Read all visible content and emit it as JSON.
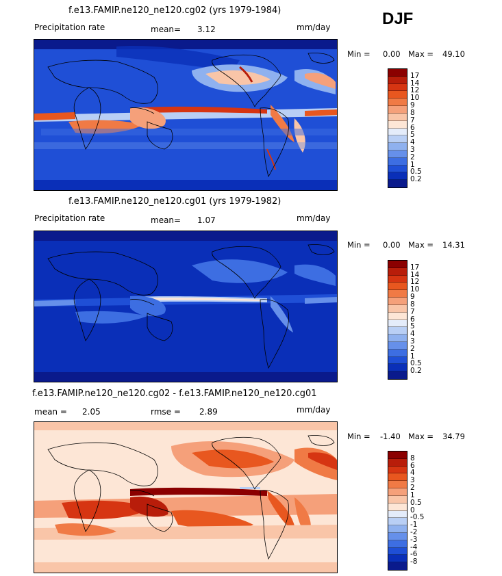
{
  "season": "DJF",
  "panels": [
    {
      "title": "f.e13.FAMIP.ne120_ne120.cg02 (yrs 1979-1984)",
      "left_label": "Precipitation rate",
      "stat1_label": "mean=",
      "stat1_value": "3.12",
      "stat2_label": "",
      "stat2_value": "",
      "units": "mm/day",
      "min_label": "Min =",
      "min_value": "0.00",
      "max_label": "Max =",
      "max_value": "49.10",
      "colorbar": {
        "levels": [
          "17",
          "14",
          "12",
          "10",
          "9",
          "8",
          "7",
          "6",
          "5",
          "4",
          "3",
          "2",
          "1",
          "0.5",
          "0.2"
        ],
        "colors": [
          "#8b0000",
          "#b81d0a",
          "#d63512",
          "#e8571f",
          "#f07a45",
          "#f5a07a",
          "#f9c5a8",
          "#fde6d6",
          "#e4ecfa",
          "#b9cff5",
          "#8fb1ef",
          "#6690ea",
          "#3d6ee2",
          "#1f4fd6",
          "#0a2fb8",
          "#0a1a8c"
        ]
      }
    },
    {
      "title": "f.e13.FAMIP.ne120_ne120.cg01 (yrs 1979-1982)",
      "left_label": "Precipitation rate",
      "stat1_label": "mean=",
      "stat1_value": "1.07",
      "stat2_label": "",
      "stat2_value": "",
      "units": "mm/day",
      "min_label": "Min =",
      "min_value": "0.00",
      "max_label": "Max =",
      "max_value": "14.31",
      "colorbar": {
        "levels": [
          "17",
          "14",
          "12",
          "10",
          "9",
          "8",
          "7",
          "6",
          "5",
          "4",
          "3",
          "2",
          "1",
          "0.5",
          "0.2"
        ],
        "colors": [
          "#8b0000",
          "#b81d0a",
          "#d63512",
          "#e8571f",
          "#f07a45",
          "#f5a07a",
          "#f9c5a8",
          "#fde6d6",
          "#e4ecfa",
          "#b9cff5",
          "#8fb1ef",
          "#6690ea",
          "#3d6ee2",
          "#1f4fd6",
          "#0a2fb8",
          "#0a1a8c"
        ]
      }
    },
    {
      "title": "f.e13.FAMIP.ne120_ne120.cg02 - f.e13.FAMIP.ne120_ne120.cg01",
      "left_label": "",
      "stat1_label": "mean =",
      "stat1_value": "2.05",
      "stat2_label": "rmse =",
      "stat2_value": "2.89",
      "units": "mm/day",
      "min_label": "Min =",
      "min_value": "-1.40",
      "max_label": "Max =",
      "max_value": "34.79",
      "colorbar": {
        "levels": [
          "8",
          "6",
          "4",
          "3",
          "2",
          "1",
          "0.5",
          "0",
          "-0.5",
          "-1",
          "-2",
          "-3",
          "-4",
          "-6",
          "-8"
        ],
        "colors": [
          "#8b0000",
          "#b81d0a",
          "#d63512",
          "#e8571f",
          "#f07a45",
          "#f5a07a",
          "#f9c5a8",
          "#fde6d6",
          "#e4ecfa",
          "#b9cff5",
          "#8fb1ef",
          "#6690ea",
          "#3d6ee2",
          "#1f4fd6",
          "#0a2fb8",
          "#0a1a8c"
        ]
      }
    }
  ]
}
